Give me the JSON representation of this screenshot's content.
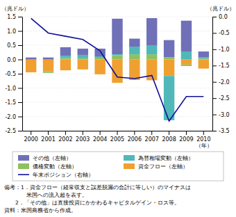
{
  "chart_data": {
    "type": "bar",
    "stacked": true,
    "grid": true,
    "legend": "bottom",
    "xlabel": "（年）",
    "ylabel": "（兆ドル）",
    "y2label": "（兆ドル）",
    "categories": [
      "2000",
      "2001",
      "2002",
      "2003",
      "2004",
      "2005",
      "2006",
      "2007",
      "2008",
      "2009",
      "2010"
    ],
    "series": [
      {
        "name": "資金フロー（左軸）",
        "color": "#f0a030",
        "values": [
          -0.45,
          -0.42,
          -0.38,
          -0.35,
          -0.52,
          -0.82,
          -0.72,
          -0.73,
          -0.58,
          -0.18,
          -0.32
        ]
      },
      {
        "name": "価格変動（左軸）",
        "color": "#90c060",
        "values": [
          0.0,
          -0.05,
          0.05,
          0.04,
          0.06,
          0.15,
          0.18,
          0.18,
          0.08,
          -0.05,
          0.03
        ]
      },
      {
        "name": "為替相場変動（左軸）",
        "color": "#50b8b8",
        "values": [
          0.0,
          0.0,
          0.08,
          0.12,
          0.05,
          0.03,
          0.27,
          0.32,
          -1.55,
          0.28,
          0.05
        ]
      },
      {
        "name": "その他（左軸）",
        "color": "#7070b8",
        "values": [
          0.07,
          0.07,
          0.3,
          0.22,
          0.27,
          1.25,
          0.28,
          0.95,
          0.6,
          1.08,
          0.2
        ]
      },
      {
        "name": "年末ポジション（右軸）",
        "type": "line",
        "axis": "y2",
        "color": "#10109a",
        "values": [
          -0.05,
          -0.5,
          -0.6,
          -0.7,
          -1.05,
          -1.85,
          -1.9,
          -1.8,
          -3.2,
          -2.45,
          -2.45
        ]
      }
    ],
    "ylim": [
      -2.5,
      1.5
    ],
    "yticks": [
      -2.5,
      {
        "value": -2.0,
        "label": "-2.0"
      },
      -1.5,
      {
        "value": -1.0,
        "label": "-1.0"
      },
      -0.5,
      {
        "value": 0.0,
        "label": "0.0"
      },
      0.5,
      {
        "value": 1.0,
        "label": "1.0"
      },
      1.5
    ],
    "y2lim": [
      -3.5,
      0.0
    ],
    "y2ticks": [
      -3.5,
      {
        "value": -3.0,
        "label": "-3.0"
      },
      -2.5,
      {
        "value": -2.0,
        "label": "-2.0"
      },
      -1.5,
      {
        "value": -1.0,
        "label": "-1.0"
      },
      -0.5,
      {
        "value": 0.0,
        "label": "0.0"
      }
    ],
    "annotations": [
      "備考：1．資金フロー（経常収支と誤差脱漏の合計に等しい）のマイナスは",
      "　　　　米国への流入超を表す。",
      "　　2．「その他」は直接投資にかかわるキャピタルゲイン・ロス等。",
      "資料：米国商務省から作成。"
    ]
  }
}
